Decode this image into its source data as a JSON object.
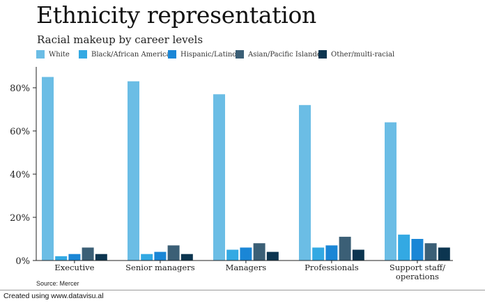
{
  "chart_data": {
    "type": "bar",
    "title": "Ethnicity representation",
    "subtitle": "Racial makeup by career levels",
    "categories": [
      [
        "Executive"
      ],
      [
        "Senior managers"
      ],
      [
        "Managers"
      ],
      [
        "Professionals"
      ],
      [
        "Support staff/",
        "operations"
      ]
    ],
    "series": [
      {
        "name": "White",
        "color": "#6bbde5",
        "values": [
          85,
          83,
          77,
          72,
          64
        ]
      },
      {
        "name": "Black/African American",
        "color": "#33a9e3",
        "values": [
          2,
          3,
          5,
          6,
          12
        ]
      },
      {
        "name": "Hispanic/Latino",
        "color": "#1a86d6",
        "values": [
          3,
          4,
          6,
          7,
          10
        ]
      },
      {
        "name": "Asian/Pacific Islander",
        "color": "#3b5f76",
        "values": [
          6,
          7,
          8,
          11,
          8
        ]
      },
      {
        "name": "Other/multi-racial",
        "color": "#0c3550",
        "values": [
          3,
          3,
          4,
          5,
          6
        ]
      }
    ],
    "yticks": [
      0,
      20,
      40,
      60,
      80
    ],
    "ytick_labels": [
      "0%",
      "20%",
      "40%",
      "60%",
      "80%"
    ],
    "ylim": [
      0,
      90
    ],
    "xlabel": "",
    "ylabel": "",
    "legend_position": "top-left"
  },
  "source": "Source: Mercer",
  "credit": "Created using www.datavisu.al"
}
